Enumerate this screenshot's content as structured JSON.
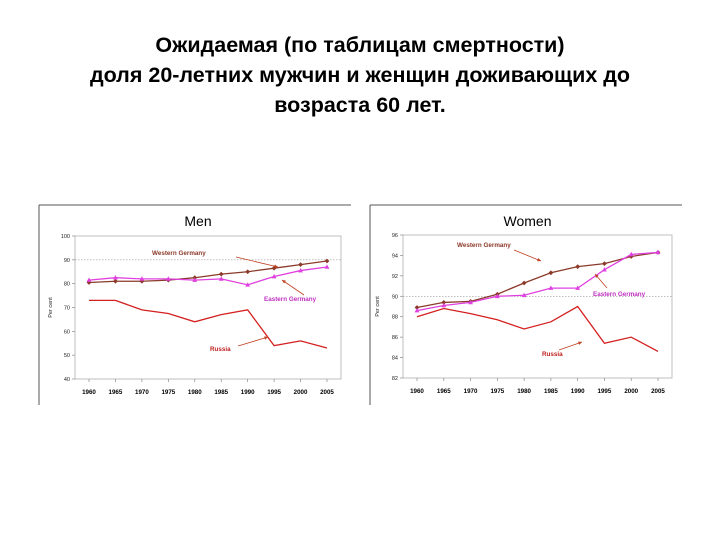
{
  "title_lines": [
    "Ожидаемая (по таблицам смертности)",
    "доля 20-летних мужчин и женщин доживающих до",
    "возраста 60 лет."
  ],
  "colors": {
    "western": "#8B3A2A",
    "eastern": "#E040E0",
    "russia": "#D42020",
    "arrow": "#C04020",
    "eastern_label": "#C030C0",
    "russia_label": "#C02020"
  },
  "chart_data": [
    {
      "type": "line",
      "title": "Men",
      "ylabel": "Per cent",
      "x": [
        1960,
        1965,
        1970,
        1975,
        1980,
        1985,
        1990,
        1995,
        2000,
        2005
      ],
      "ylim": [
        40,
        100
      ],
      "yticks": [
        "40",
        "50",
        "60",
        "70",
        "80",
        "90",
        "100"
      ],
      "xticks": [
        "1960",
        "1965",
        "1970",
        "1975",
        "1980",
        "1985",
        "1990",
        "1995",
        "2000",
        "2005"
      ],
      "grid": false,
      "series": [
        {
          "name": "Western Germany",
          "color": "#8B3A2A",
          "marker": "diamond",
          "values": [
            80.5,
            81,
            81,
            81.5,
            82.5,
            84,
            85,
            86.5,
            88,
            89.5
          ]
        },
        {
          "name": "Eastern Germany",
          "color": "#E040E0",
          "marker": "triangle",
          "values": [
            81.5,
            82.5,
            82,
            82,
            81.5,
            82,
            79.5,
            83,
            85.5,
            87
          ]
        },
        {
          "name": "Russia",
          "color": "#D42020",
          "marker": "none",
          "values": [
            73,
            73,
            69,
            67.5,
            64,
            67,
            69,
            54,
            56,
            53
          ]
        }
      ]
    },
    {
      "type": "line",
      "title": "Women",
      "ylabel": "Per cent",
      "x": [
        1960,
        1965,
        1970,
        1975,
        1980,
        1985,
        1990,
        1995,
        2000,
        2005
      ],
      "ylim": [
        82,
        96
      ],
      "yticks": [
        "82",
        "84",
        "86",
        "88",
        "90",
        "92",
        "94",
        "96"
      ],
      "xticks": [
        "1960",
        "1965",
        "1970",
        "1975",
        "1980",
        "1985",
        "1990",
        "1995",
        "2000",
        "2005"
      ],
      "grid": false,
      "series": [
        {
          "name": "Western Germany",
          "color": "#8B3A2A",
          "marker": "diamond",
          "values": [
            88.9,
            89.4,
            89.5,
            90.2,
            91.3,
            92.3,
            92.9,
            93.2,
            93.9,
            94.3
          ]
        },
        {
          "name": "Eastern Germany",
          "color": "#E040E0",
          "marker": "triangle",
          "values": [
            88.6,
            89.1,
            89.4,
            90,
            90.1,
            90.8,
            90.8,
            92.6,
            94.1,
            94.3
          ]
        },
        {
          "name": "Russia",
          "color": "#D42020",
          "marker": "none",
          "values": [
            88,
            88.8,
            88.3,
            87.7,
            86.8,
            87.5,
            89,
            85.4,
            86,
            84.6
          ]
        }
      ]
    }
  ]
}
